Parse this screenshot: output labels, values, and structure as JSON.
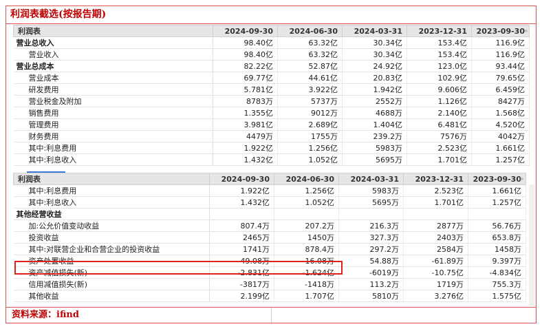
{
  "title": "利润表截选(按报告期)",
  "source": "资料来源：ifind",
  "scroll_icon": "»",
  "table1": {
    "headers": [
      "利润表",
      "2024-09-30",
      "2024-06-30",
      "2024-03-31",
      "2023-12-31",
      "2023-09-30"
    ],
    "rows": [
      {
        "label": "营业总收入",
        "bold": true,
        "values": [
          "98.40亿",
          "63.32亿",
          "30.34亿",
          "153.4亿",
          "116.9亿"
        ]
      },
      {
        "label": "营业收入",
        "bold": false,
        "values": [
          "98.40亿",
          "63.32亿",
          "30.34亿",
          "153.4亿",
          "116.9亿"
        ]
      },
      {
        "label": "营业总成本",
        "bold": true,
        "values": [
          "82.22亿",
          "52.87亿",
          "24.92亿",
          "123.0亿",
          "93.44亿"
        ]
      },
      {
        "label": "营业成本",
        "bold": false,
        "values": [
          "69.77亿",
          "44.61亿",
          "20.83亿",
          "102.9亿",
          "79.65亿"
        ]
      },
      {
        "label": "研发费用",
        "bold": false,
        "values": [
          "5.781亿",
          "3.922亿",
          "1.942亿",
          "9.606亿",
          "6.459亿"
        ]
      },
      {
        "label": "营业税金及附加",
        "bold": false,
        "values": [
          "8783万",
          "5737万",
          "2552万",
          "1.126亿",
          "8427万"
        ]
      },
      {
        "label": "销售费用",
        "bold": false,
        "values": [
          "1.355亿",
          "9012万",
          "4688万",
          "2.140亿",
          "1.568亿"
        ]
      },
      {
        "label": "管理费用",
        "bold": false,
        "values": [
          "3.981亿",
          "2.689亿",
          "1.404亿",
          "6.481亿",
          "4.520亿"
        ]
      },
      {
        "label": "财务费用",
        "bold": false,
        "values": [
          "4479万",
          "1755万",
          "239.2万",
          "7576万",
          "4042万"
        ]
      },
      {
        "label": "其中:利息费用",
        "bold": false,
        "values": [
          "1.922亿",
          "1.256亿",
          "5983万",
          "2.523亿",
          "1.661亿"
        ]
      },
      {
        "label": "其中:利息收入",
        "bold": false,
        "values": [
          "1.432亿",
          "1.052亿",
          "5695万",
          "1.701亿",
          "1.257亿"
        ]
      }
    ]
  },
  "table2": {
    "headers": [
      "利润表",
      "2024-09-30",
      "2024-06-30",
      "2024-03-31",
      "2023-12-31",
      "2023-09-30"
    ],
    "rows": [
      {
        "label": "其中:利息费用",
        "bold": false,
        "values": [
          "1.922亿",
          "1.256亿",
          "5983万",
          "2.523亿",
          "1.661亿"
        ]
      },
      {
        "label": "其中:利息收入",
        "bold": false,
        "values": [
          "1.432亿",
          "1.052亿",
          "5695万",
          "1.701亿",
          "1.257亿"
        ]
      },
      {
        "label": "其他经营收益",
        "bold": true,
        "values": [
          "",
          "",
          "",
          "",
          ""
        ]
      },
      {
        "label": "加:公允价值变动收益",
        "bold": false,
        "values": [
          "807.4万",
          "207.2万",
          "216.3万",
          "2877万",
          "56.76万"
        ]
      },
      {
        "label": "投资收益",
        "bold": false,
        "values": [
          "2465万",
          "1450万",
          "327.3万",
          "2403万",
          "653.8万"
        ]
      },
      {
        "label": "其中:对联营企业和合营企业的投资收益",
        "bold": false,
        "values": [
          "1741万",
          "878.4万",
          "297.2万",
          "2584万",
          "1458万"
        ]
      },
      {
        "label": "资产处置收益",
        "bold": false,
        "values": [
          "-49.08万",
          "-16.08万",
          "54.88万",
          "-61.89万",
          "9.397万"
        ]
      },
      {
        "label": "资产减值损失(新)",
        "bold": false,
        "values": [
          "-2.831亿",
          "-1.624亿",
          "-6019万",
          "-10.75亿",
          "-4.834亿"
        ]
      },
      {
        "label": "信用减值损失(新)",
        "bold": false,
        "values": [
          "-3817万",
          "-1418万",
          "113.2万",
          "1719万",
          "755.3万"
        ]
      },
      {
        "label": "其他收益",
        "bold": false,
        "values": [
          "2.199亿",
          "1.707亿",
          "5810万",
          "3.276亿",
          "1.575亿"
        ]
      }
    ]
  }
}
